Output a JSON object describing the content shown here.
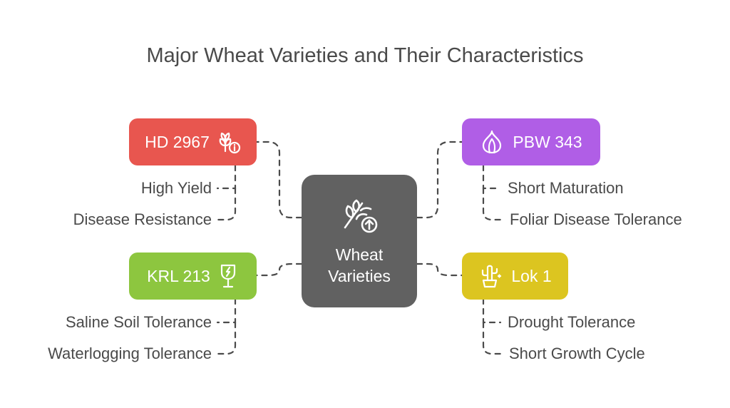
{
  "title": "Major Wheat Varieties and Their Characteristics",
  "center": {
    "line1": "Wheat",
    "line2": "Varieties",
    "icon": "wheat-arrow-icon"
  },
  "varieties": [
    {
      "id": "hd2967",
      "label": "HD 2967",
      "color": "#e8564f",
      "icon": "wheat-info-icon",
      "features": [
        "High Yield",
        "Disease Resistance"
      ]
    },
    {
      "id": "pbw343",
      "label": "PBW 343",
      "color": "#b05ee6",
      "icon": "garlic-icon",
      "features": [
        "Short Maturation",
        "Foliar Disease Tolerance"
      ]
    },
    {
      "id": "krl213",
      "label": "KRL 213",
      "color": "#8dc63f",
      "icon": "glass-icon",
      "features": [
        "Saline Soil Tolerance",
        "Waterlogging Tolerance"
      ]
    },
    {
      "id": "lok1",
      "label": "Lok 1",
      "color": "#dcc520",
      "icon": "cactus-icon",
      "features": [
        "Drought Tolerance",
        "Short Growth Cycle"
      ]
    }
  ],
  "colors": {
    "center": "#616161",
    "text": "#4a4a4a",
    "connector": "#4a4a4a"
  }
}
